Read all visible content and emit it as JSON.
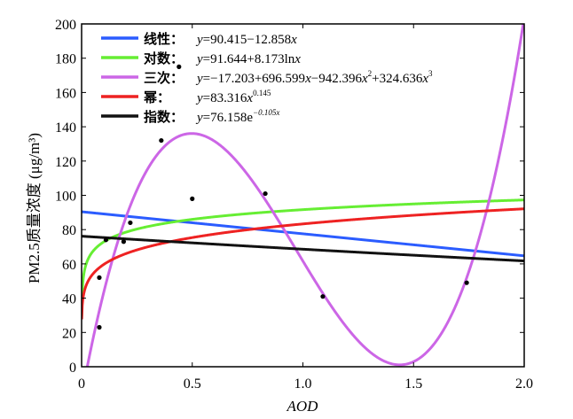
{
  "chart_data": {
    "type": "scatter",
    "title": "",
    "xlabel": "AOD",
    "ylabel": "PM2.5质量浓度 (μg/m³)",
    "xlim": [
      0,
      2.0
    ],
    "ylim": [
      0,
      200
    ],
    "x_ticks": [
      {
        "value": 0,
        "label": "0"
      },
      {
        "value": 0.5,
        "label": "0.5"
      },
      {
        "value": 1.0,
        "label": "1.0"
      },
      {
        "value": 1.5,
        "label": "1.5"
      },
      {
        "value": 2.0,
        "label": "2.0"
      }
    ],
    "y_ticks": [
      {
        "value": 0,
        "label": "0"
      },
      {
        "value": 20,
        "label": "20"
      },
      {
        "value": 40,
        "label": "40"
      },
      {
        "value": 60,
        "label": "60"
      },
      {
        "value": 80,
        "label": "80"
      },
      {
        "value": 100,
        "label": "100"
      },
      {
        "value": 120,
        "label": "120"
      },
      {
        "value": 140,
        "label": "140"
      },
      {
        "value": 160,
        "label": "160"
      },
      {
        "value": 180,
        "label": "180"
      },
      {
        "value": 200,
        "label": "200"
      }
    ],
    "points": [
      {
        "x": 0.08,
        "y": 23
      },
      {
        "x": 0.08,
        "y": 52
      },
      {
        "x": 0.11,
        "y": 74
      },
      {
        "x": 0.19,
        "y": 73
      },
      {
        "x": 0.22,
        "y": 84
      },
      {
        "x": 0.36,
        "y": 132
      },
      {
        "x": 0.44,
        "y": 175
      },
      {
        "x": 0.5,
        "y": 98
      },
      {
        "x": 0.83,
        "y": 101
      },
      {
        "x": 1.09,
        "y": 41
      },
      {
        "x": 1.74,
        "y": 49
      }
    ],
    "series": [
      {
        "name": "线性",
        "equation": "y=90.415−12.858x",
        "color": "#2b5cff",
        "model": "linear",
        "coef": [
          90.415,
          -12.858
        ]
      },
      {
        "name": "对数",
        "equation": "y=91.644+8.173lnx",
        "color": "#66ee33",
        "model": "log",
        "coef": [
          91.644,
          8.173
        ]
      },
      {
        "name": "三次",
        "equation": "y=−17.203+696.599x−942.396x²+324.636x³",
        "color": "#cc66e6",
        "model": "cubic",
        "coef": [
          -17.203,
          696.599,
          -942.396,
          324.636
        ]
      },
      {
        "name": "幂",
        "equation": "y=83.316x^0.145",
        "color": "#ee2222",
        "model": "power",
        "coef": [
          83.316,
          0.145
        ]
      },
      {
        "name": "指数",
        "equation": "y=76.158e^−0.105x",
        "color": "#111111",
        "model": "exp",
        "coef": [
          76.158,
          -0.105
        ]
      }
    ],
    "legend": {
      "placement": "top-left",
      "separator": "：",
      "entries": [
        {
          "name": "线性",
          "eq_parts": [
            [
              "y",
              "i"
            ],
            [
              "=90.415−12.858",
              "n"
            ],
            [
              "x",
              "i"
            ]
          ]
        },
        {
          "name": "对数",
          "eq_parts": [
            [
              "y",
              "i"
            ],
            [
              "=91.644+8.173ln",
              "n"
            ],
            [
              "x",
              "i"
            ]
          ]
        },
        {
          "name": "三次",
          "eq_parts": [
            [
              "y",
              "i"
            ],
            [
              "=−17.203+696.599",
              "n"
            ],
            [
              "x",
              "i"
            ],
            [
              "−942.396",
              "n"
            ],
            [
              "x",
              "i"
            ],
            [
              "2",
              "sup"
            ],
            [
              "+324.636",
              "n"
            ],
            [
              "x",
              "i"
            ],
            [
              "3",
              "sup"
            ]
          ]
        },
        {
          "name": "幂",
          "eq_parts": [
            [
              "y",
              "i"
            ],
            [
              "=83.316",
              "n"
            ],
            [
              "x",
              "i"
            ],
            [
              "0.145",
              "sup"
            ]
          ]
        },
        {
          "name": "指数",
          "eq_parts": [
            [
              "y",
              "i"
            ],
            [
              "=76.158e",
              "n"
            ],
            [
              "−0.105x",
              "supi"
            ]
          ]
        }
      ]
    }
  }
}
